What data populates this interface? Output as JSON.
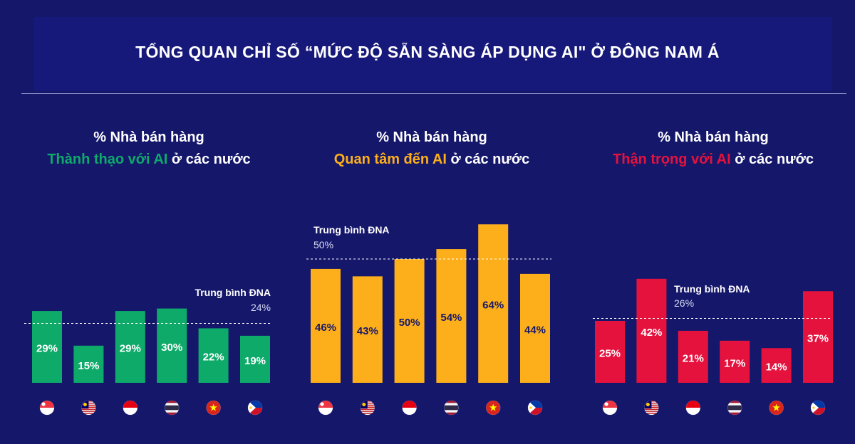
{
  "title": "TỔNG QUAN CHỈ SỐ “MỨC ĐỘ SẴN SÀNG ÁP DỤNG AI\" Ở ĐÔNG NAM Á",
  "flags": [
    "singapore-flag-icon",
    "malaysia-flag-icon",
    "indonesia-flag-icon",
    "thailand-flag-icon",
    "vietnam-flag-icon",
    "philippines-flag-icon"
  ],
  "colors": {
    "background": "#15176b",
    "green": "#0eaa6a",
    "orange": "#fcaf1a",
    "red": "#e5123e"
  },
  "panels": [
    {
      "line1": "% Nhà bán hàng",
      "highlight": "Thành thạo với AI",
      "suffix": " ở các nước",
      "avg_label": "Trung bình ĐNA",
      "avg_text": "24%"
    },
    {
      "line1": "% Nhà bán hàng",
      "highlight": "Quan tâm đến AI",
      "suffix": " ở các nước",
      "avg_label": "Trung bình ĐNA",
      "avg_text": "50%"
    },
    {
      "line1": "% Nhà bán hàng",
      "highlight": "Thận trọng với AI",
      "suffix": " ở các nước",
      "avg_label": "Trung bình ĐNA",
      "avg_text": "26%"
    }
  ],
  "chart_data": [
    {
      "type": "bar",
      "title": "% Nhà bán hàng Thành thạo với AI ở các nước",
      "categories": [
        "Singapore",
        "Malaysia",
        "Indonesia",
        "Thailand",
        "Vietnam",
        "Philippines"
      ],
      "values": [
        29,
        15,
        29,
        30,
        22,
        19
      ],
      "value_labels": [
        "29%",
        "15%",
        "29%",
        "30%",
        "22%",
        "19%"
      ],
      "average": 24,
      "color": "#0eaa6a"
    },
    {
      "type": "bar",
      "title": "% Nhà bán hàng Quan tâm đến AI ở các nước",
      "categories": [
        "Singapore",
        "Malaysia",
        "Indonesia",
        "Thailand",
        "Vietnam",
        "Philippines"
      ],
      "values": [
        46,
        43,
        50,
        54,
        64,
        44
      ],
      "value_labels": [
        "46%",
        "43%",
        "50%",
        "54%",
        "64%",
        "44%"
      ],
      "average": 50,
      "color": "#fcaf1a"
    },
    {
      "type": "bar",
      "title": "% Nhà bán hàng Thận trọng với AI ở các nước",
      "categories": [
        "Singapore",
        "Malaysia",
        "Indonesia",
        "Thailand",
        "Vietnam",
        "Philippines"
      ],
      "values": [
        25,
        42,
        21,
        17,
        14,
        37
      ],
      "value_labels": [
        "25%",
        "42%",
        "21%",
        "17%",
        "14%",
        "37%"
      ],
      "average": 26,
      "color": "#e5123e"
    }
  ]
}
